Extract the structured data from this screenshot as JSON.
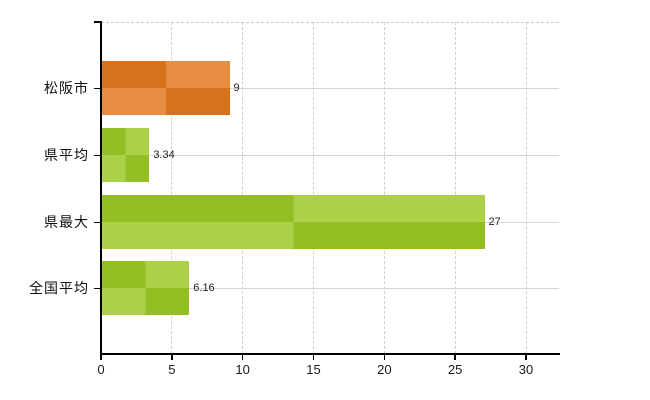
{
  "chart_data": {
    "type": "bar",
    "orientation": "horizontal",
    "title": "",
    "categories": [
      "松阪市",
      "県平均",
      "県最大",
      "全国平均"
    ],
    "values": [
      9,
      3.34,
      27,
      6.16
    ],
    "value_labels": [
      "9",
      "3.34",
      "27",
      "6.16"
    ],
    "bar_colors": [
      "#e1771e",
      "#9bc826",
      "#9bc826",
      "#9bc826"
    ],
    "x_ticks": [
      0,
      5,
      10,
      15,
      20,
      25,
      30
    ],
    "x_tick_labels": [
      "0",
      "5",
      "10",
      "15",
      "20",
      "25",
      "30"
    ],
    "xlim": [
      0,
      32.4
    ],
    "grid": "on",
    "legend": "none"
  },
  "colors": {
    "background": "#ffffff",
    "axis": "#000000",
    "gridline_horizontal": "#d6d6d6",
    "gridline_vertical": "#d0d0d0",
    "plot_top_border": "#c9c9c9",
    "bar_orange": "#e1771e",
    "bar_green": "#9bc826",
    "text": "#111111"
  }
}
